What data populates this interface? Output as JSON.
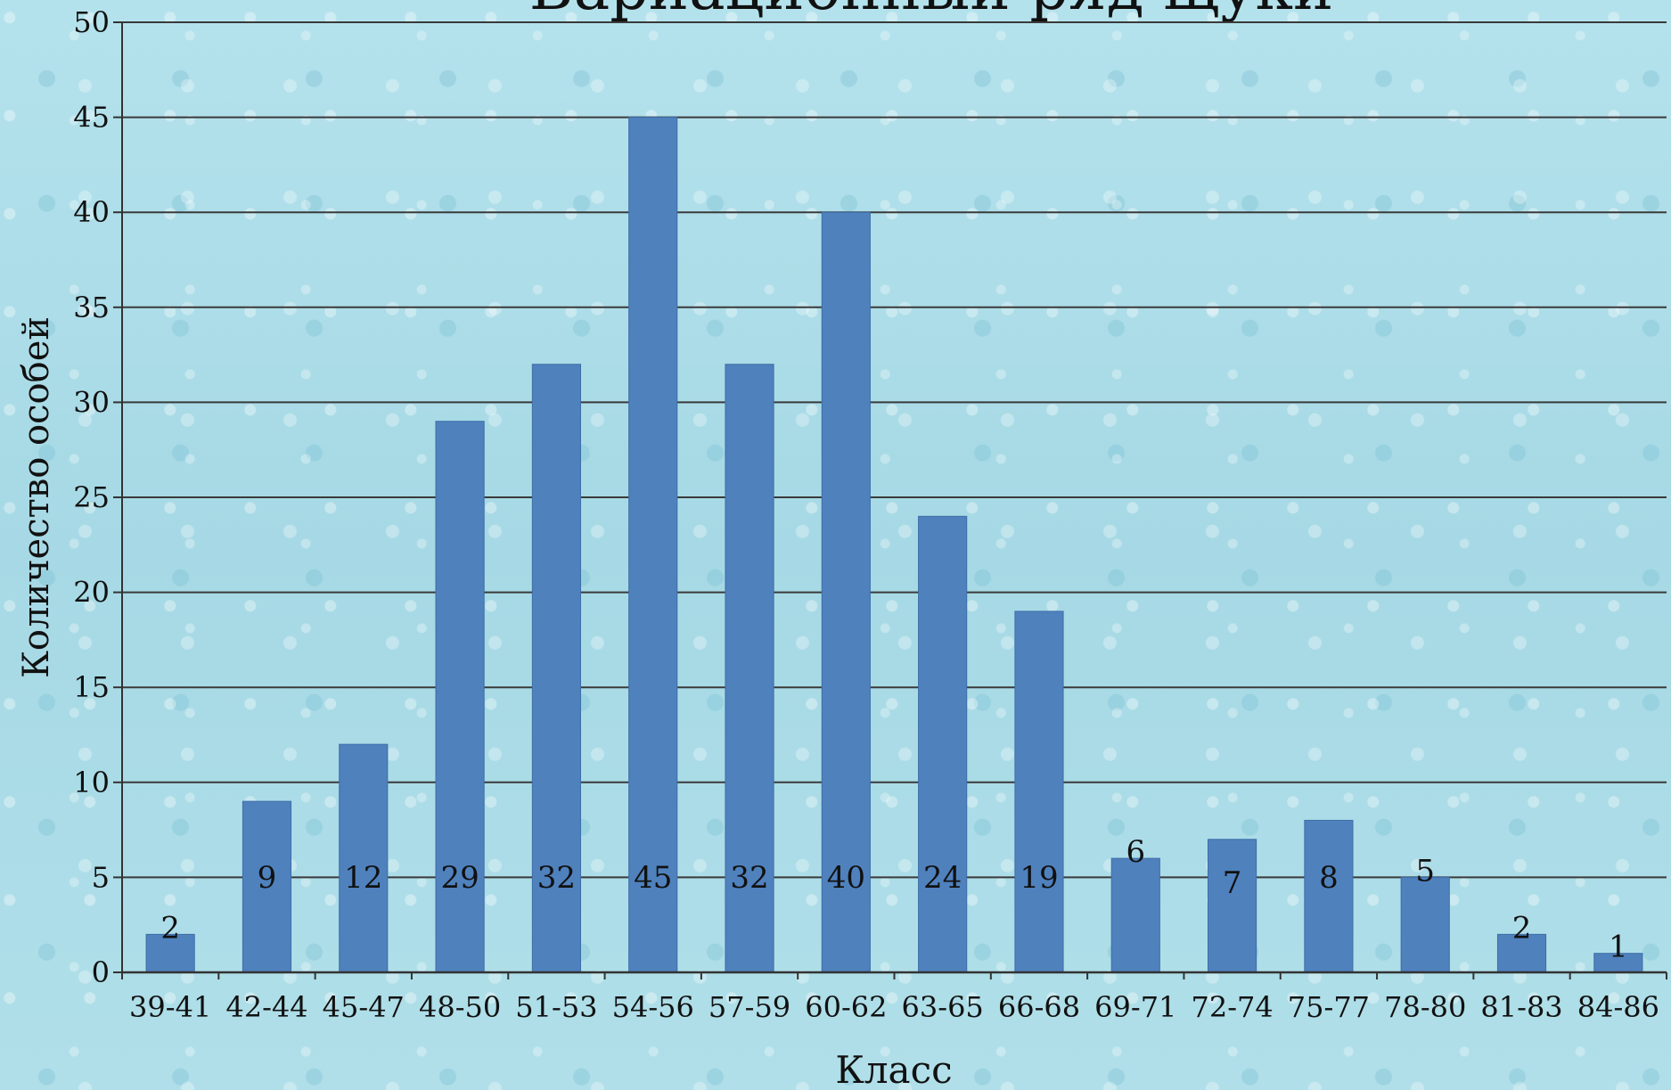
{
  "chart_data": {
    "type": "bar",
    "title": "Вариационный ряд щуки",
    "xlabel": "Класс",
    "ylabel": "Количество особей",
    "ylim": [
      0,
      50
    ],
    "yticks": [
      0,
      5,
      10,
      15,
      20,
      25,
      30,
      35,
      40,
      45,
      50
    ],
    "grid": true,
    "categories": [
      "39-41",
      "42-44",
      "45-47",
      "48-50",
      "51-53",
      "54-56",
      "57-59",
      "60-62",
      "63-65",
      "66-68",
      "69-71",
      "72-74",
      "75-77",
      "78-80",
      "81-83",
      "84-86"
    ],
    "values": [
      2,
      9,
      12,
      29,
      32,
      45,
      32,
      40,
      24,
      19,
      6,
      7,
      8,
      5,
      2,
      1
    ],
    "colors": {
      "bar": "#4f81bd",
      "bar_stroke": "#3d6ea8",
      "grid": "#3a3a3a",
      "axis": "#333333",
      "text": "#111111"
    }
  }
}
